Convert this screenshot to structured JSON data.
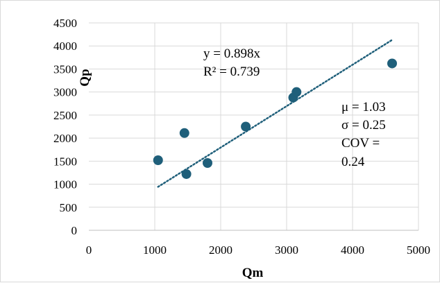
{
  "chart_data": {
    "type": "scatter",
    "xlabel": "Qm",
    "ylabel": "Qp",
    "xlim": [
      0,
      5000
    ],
    "ylim": [
      0,
      4500
    ],
    "x_ticks": [
      "0",
      "1000",
      "2000",
      "3000",
      "4000",
      "5000"
    ],
    "y_ticks": [
      "0",
      "500",
      "1000",
      "1500",
      "2000",
      "2500",
      "3000",
      "3500",
      "4000",
      "4500"
    ],
    "grid": true,
    "marker_color": "#1f5f7a",
    "trendline_color": "#1f5f7a",
    "series": [
      {
        "x": [
          1050,
          1450,
          1480,
          1800,
          2380,
          3100,
          3150,
          4600
        ],
        "y": [
          1520,
          2110,
          1220,
          1460,
          2250,
          2880,
          3000,
          3620
        ]
      }
    ],
    "trendline": {
      "style": "dotted",
      "slope": 0.898,
      "x_range": [
        1050,
        4600
      ],
      "equation": "y = 0.898x",
      "r_squared": "R² = 0.739"
    },
    "stats": {
      "mu": "μ = 1.03",
      "sigma": "σ = 0.25",
      "cov_line1": "COV =",
      "cov_line2": "0.24"
    }
  }
}
